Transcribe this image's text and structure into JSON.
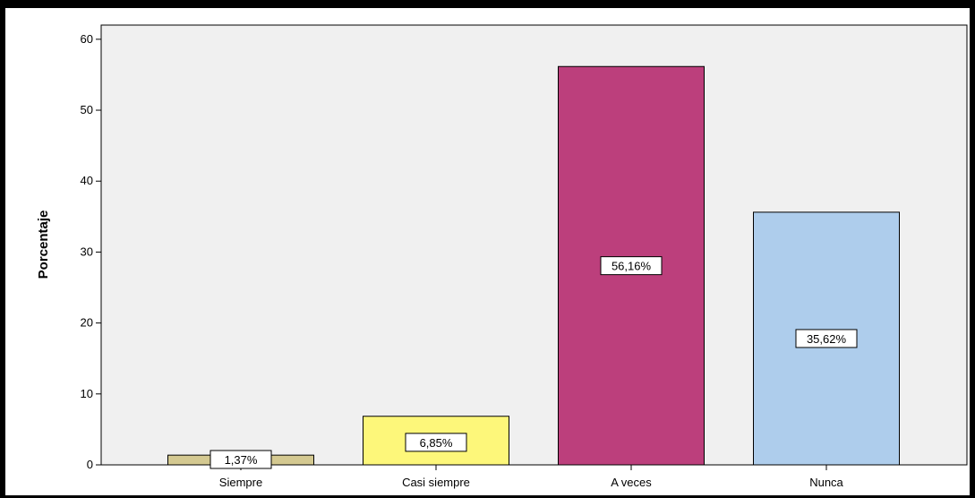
{
  "chart_data": {
    "type": "bar",
    "title": "",
    "xlabel": "",
    "ylabel": "Porcentaje",
    "categories": [
      "Siempre",
      "Casi siempre",
      "A veces",
      "Nunca"
    ],
    "values": [
      1.37,
      6.85,
      56.16,
      35.62
    ],
    "data_labels": [
      "1,37%",
      "6,85%",
      "56,16%",
      "35,62%"
    ],
    "colors": [
      "#d4c991",
      "#fdf77a",
      "#bc3f7c",
      "#aecdec"
    ],
    "plot_background": "#f0f0f0",
    "ylim": [
      0,
      62
    ],
    "yticks": [
      0,
      10,
      20,
      30,
      40,
      50,
      60
    ],
    "grid": false,
    "legend": "none"
  }
}
